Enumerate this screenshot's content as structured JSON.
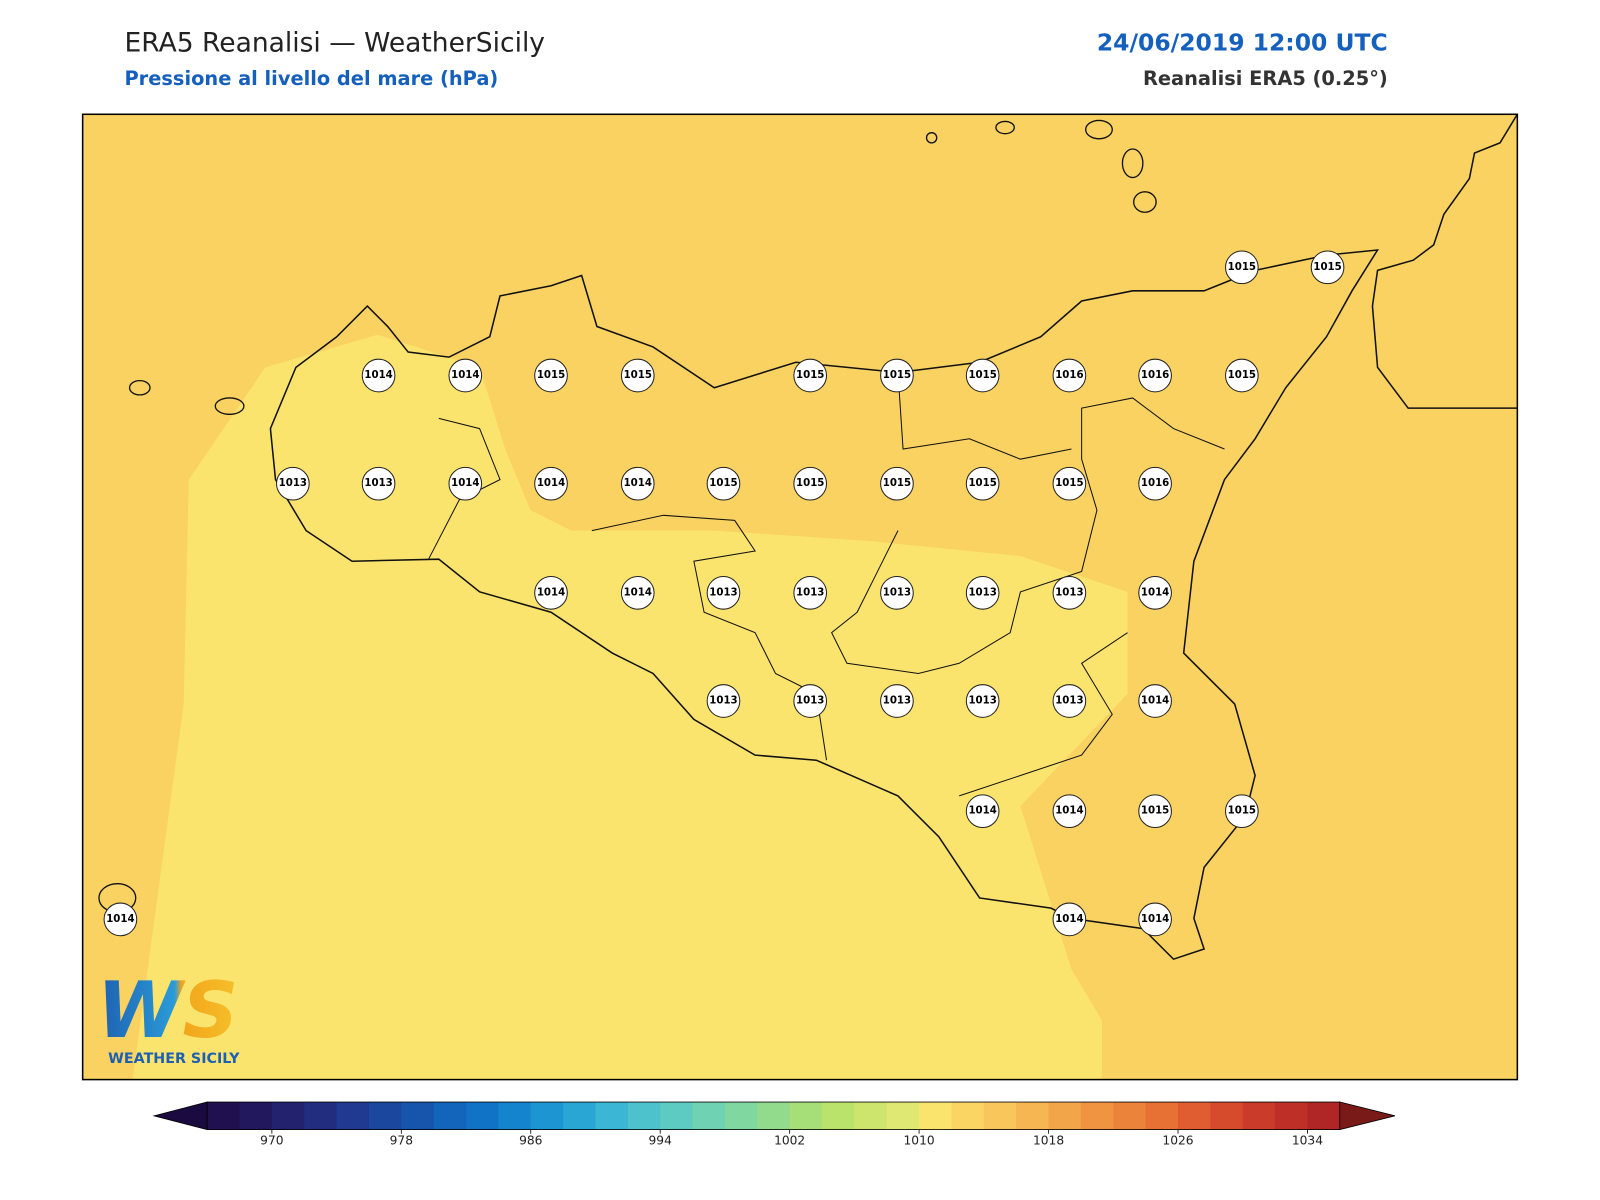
{
  "header": {
    "title": "ERA5 Reanalisi — WeatherSicily",
    "subtitle": "Pressione al livello del mare (hPa)",
    "datetime": "24/06/2019 12:00 UTC",
    "source": "Reanalisi ERA5 (0.25°)"
  },
  "stations": {
    "values": [
      1015,
      1015,
      1014,
      1014,
      1015,
      1015,
      1015,
      1015,
      1015,
      1016,
      1016,
      1015,
      1013,
      1013,
      1014,
      1014,
      1014,
      1015,
      1015,
      1015,
      1015,
      1015,
      1016,
      1014,
      1014,
      1013,
      1013,
      1013,
      1013,
      1013,
      1014,
      1013,
      1013,
      1013,
      1013,
      1013,
      1014,
      1014,
      1014,
      1015,
      1015,
      1014,
      1014,
      1014
    ]
  },
  "colorbar": {
    "lim": [
      966,
      1036
    ],
    "ticks": [
      970,
      978,
      986,
      994,
      1002,
      1010,
      1018,
      1026,
      1034
    ],
    "under_color": "#1a0a40",
    "over_color": "#7a1a18",
    "colors": [
      "#211050",
      "#22185e",
      "#23226e",
      "#232d80",
      "#1f3a90",
      "#1b479f",
      "#1755ad",
      "#1364bb",
      "#1173c6",
      "#1484ce",
      "#1d95d2",
      "#2aa6d4",
      "#3bb6d4",
      "#4dc2cd",
      "#5ecbc2",
      "#6fd2b2",
      "#80d7a0",
      "#93db8c",
      "#a6df78",
      "#bae36c",
      "#cde56c",
      "#e0e874",
      "#fbe46e",
      "#fad564",
      "#f8c65a",
      "#f6b651",
      "#f3a549",
      "#f09442",
      "#ec833b",
      "#e77035",
      "#df5d30",
      "#d54b2c",
      "#ca3b29",
      "#bd2f27",
      "#b02525"
    ]
  },
  "logo": {
    "text": "WS",
    "tagline": "WEATHER SICILY"
  }
}
